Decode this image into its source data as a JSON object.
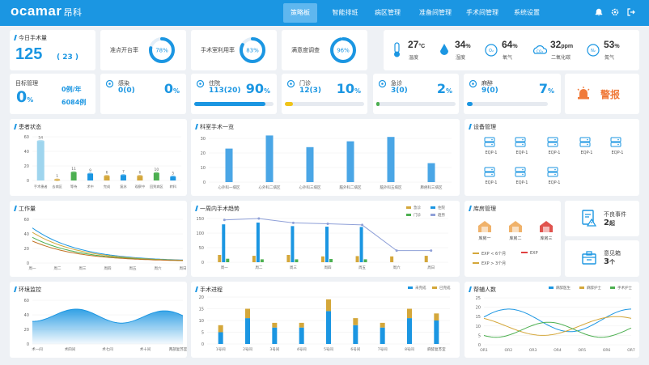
{
  "header": {
    "logo": "ocamar",
    "logo_sub": "昂科",
    "nav": [
      "策略板",
      "智能排班",
      "病区管理",
      "准备间管理",
      "手术间管理",
      "系统设置"
    ],
    "active_nav": 0
  },
  "top": {
    "today_label": "今日手术量",
    "today_value": "125",
    "today_sub": "( 23 )",
    "rings": [
      {
        "label": "准点开台率",
        "value": "78%",
        "pct": 78
      },
      {
        "label": "手术室利用率",
        "value": "83%",
        "pct": 83
      },
      {
        "label": "满意度调查",
        "value": "96%",
        "pct": 96
      }
    ],
    "env": [
      {
        "icon": "thermometer-icon",
        "value": "27",
        "unit": "°C",
        "label": "温度"
      },
      {
        "icon": "humidity-icon",
        "value": "34",
        "unit": "%",
        "label": "湿度"
      },
      {
        "icon": "oxygen-icon",
        "glyph": "O₂",
        "value": "64",
        "unit": "%",
        "label": "氧气"
      },
      {
        "icon": "co2-icon",
        "glyph": "CO₂",
        "value": "32",
        "unit": "ppm",
        "label": "二氧化碳"
      },
      {
        "icon": "nitrogen-icon",
        "glyph": "N₂",
        "value": "53",
        "unit": "%",
        "label": "氮气"
      }
    ]
  },
  "row2": {
    "target": {
      "label": "目标管理",
      "value": "0",
      "unit": "%",
      "line1": "0例/年",
      "line2": "6084例"
    },
    "stats": [
      {
        "icon": "virus-icon",
        "label": "感染",
        "sub": "0(0)",
        "pct": "0",
        "fill": 0
      },
      {
        "icon": "bed-icon",
        "label": "住院",
        "sub": "113(20)",
        "pct": "90",
        "fill": 90
      },
      {
        "icon": "outpatient-icon",
        "label": "门诊",
        "sub": "12(3)",
        "pct": "10",
        "fill": 10
      },
      {
        "icon": "emergency-icon",
        "label": "急诊",
        "sub": "3(0)",
        "pct": "2",
        "fill": 2
      },
      {
        "icon": "syringe-icon",
        "label": "麻醉",
        "sub": "9(0)",
        "pct": "7",
        "fill": 7
      }
    ],
    "alarm_label": "警报"
  },
  "patient": {
    "title": "患者状态",
    "yticks": [
      "0",
      "20",
      "40",
      "60"
    ],
    "cats": [
      "手术患者",
      "去病区",
      "等待",
      "术中",
      "完成",
      "复苏",
      "观察中",
      "回到病区",
      "转科"
    ],
    "vals": [
      54,
      1,
      11,
      9,
      6,
      7,
      6,
      10,
      5
    ],
    "colors": [
      "#9fd5ee",
      "#d4a73a",
      "#4caf50",
      "#1b96e2",
      "#d4a73a",
      "#1b96e2",
      "#d4a73a",
      "#4caf50",
      "#1b96e2"
    ]
  },
  "dept": {
    "title": "科室手术一览",
    "yticks": [
      "0",
      "10",
      "20",
      "30"
    ],
    "cats": [
      "心外科一病区",
      "心外科二病区",
      "心外科三病区",
      "脑外科二病区",
      "脑外科五病区",
      "肺癌科三病区"
    ],
    "vals": [
      23,
      32,
      24,
      28,
      31,
      13
    ]
  },
  "equip": {
    "title": "设备管理",
    "items": [
      "EQP-1",
      "EQP-1",
      "EQP-1",
      "EQP-1",
      "EQP-1",
      "EQP-1",
      "EQP-1",
      "EQP-1"
    ]
  },
  "workload": {
    "title": "工作量",
    "yticks": [
      "0",
      "20",
      "40",
      "60"
    ],
    "cats": [
      "周一",
      "周二",
      "周三",
      "周四",
      "周五",
      "周六",
      "周日"
    ]
  },
  "weekly": {
    "title": "一周内手术趋势",
    "legend": [
      "急诊",
      "住院",
      "门诊",
      "趋势"
    ],
    "yticks": [
      "0",
      "50",
      "100",
      "150"
    ],
    "cats": [
      "周一",
      "周二",
      "周三",
      "周四",
      "周五",
      "周六",
      "周日"
    ],
    "emergency": [
      25,
      22,
      25,
      20,
      21,
      20,
      22
    ],
    "inpatient": [
      130,
      136,
      124,
      122,
      121,
      0,
      0
    ],
    "outpatient": [
      12,
      10,
      10,
      11,
      10,
      0,
      0
    ],
    "trend": [
      145,
      150,
      135,
      132,
      128,
      40,
      40
    ]
  },
  "store": {
    "title": "库房管理",
    "items": [
      "库房一",
      "库房二",
      "库房三"
    ],
    "colors": [
      "#f0b26a",
      "#f0b26a",
      "#e0534e"
    ],
    "legend": [
      "EXP < 6个月",
      "EXP",
      "EXP > 3个月"
    ],
    "legend_colors": [
      "#d4a73a",
      "#e04040",
      "#d4a73a"
    ]
  },
  "incident": {
    "label": "不良事件",
    "value": "2",
    "unit": "起"
  },
  "feedback": {
    "label": "意见箱",
    "value": "3",
    "unit": "个"
  },
  "env_monitor": {
    "title": "环境监控",
    "yticks": [
      "0",
      "20",
      "40",
      "60"
    ],
    "cats": [
      "术一间",
      "术四间",
      "术七间",
      "术十间",
      "两部复苏室"
    ]
  },
  "progress": {
    "title": "手术进程",
    "legend": [
      "未完成",
      "已完成"
    ],
    "yticks": [
      "0",
      "5",
      "10",
      "15",
      "20"
    ],
    "cats": [
      "1号间",
      "2号间",
      "3号间",
      "4号间",
      "5号间",
      "6号间",
      "7号间",
      "8号间",
      "麻醉复苏室"
    ],
    "done": [
      5,
      11,
      7,
      7,
      14,
      8,
      7,
      11,
      10
    ],
    "todo": [
      3,
      4,
      2,
      2,
      5,
      3,
      2,
      4,
      3
    ]
  },
  "assist": {
    "title": "帮辅人数",
    "legend": [
      "麻醉医生",
      "麻醉护士",
      "手术护士"
    ],
    "yticks": [
      "0",
      "5",
      "10",
      "15",
      "20",
      "25"
    ],
    "cats": [
      "OR1",
      "OR2",
      "OR3",
      "OR4",
      "OR5",
      "OR6",
      "OR7"
    ]
  }
}
